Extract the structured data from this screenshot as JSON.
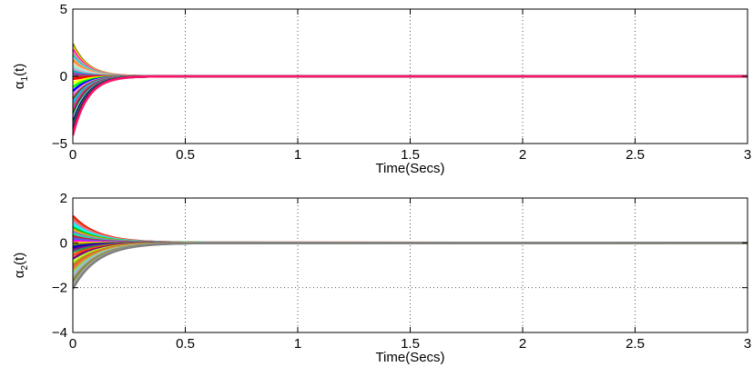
{
  "chart_data": [
    {
      "type": "line",
      "xlabel": "Time(Secs)",
      "ylabel": "α",
      "ylabel_sub": "1",
      "ylabel_suffix": "(t)",
      "xlim": [
        0,
        3
      ],
      "ylim": [
        -5,
        5
      ],
      "xticks": [
        0,
        0.5,
        1,
        1.5,
        2,
        2.5,
        3
      ],
      "xtick_labels": [
        "0",
        "0.5",
        "1",
        "1.5",
        "2",
        "2.5",
        "3"
      ],
      "yticks": [
        -5,
        0,
        5
      ],
      "ytick_labels": [
        "−5",
        "0",
        "5"
      ],
      "grid": true,
      "decay": 15,
      "overshoot": 0.03,
      "settling_time": 0.65,
      "initial_values": [
        2.4,
        2.2,
        2.0,
        1.8,
        1.6,
        1.4,
        1.2,
        1.0,
        0.8,
        0.6,
        0.4,
        0.2,
        0.0,
        -0.2,
        -0.5,
        -0.8,
        -1.1,
        -1.4,
        -1.7,
        -2.0,
        -2.3,
        -2.6,
        -2.9,
        -3.2,
        -3.5,
        -3.8,
        -4.1,
        -4.4
      ],
      "colors": [
        "#808000",
        "#ffd700",
        "#ff00ff",
        "#ffa07a",
        "#00ced1",
        "#c0c0c0",
        "#ff8c00",
        "#ffc0cb",
        "#7fffd4",
        "#dda0dd",
        "#20b2aa",
        "#9932cc",
        "#a0522d",
        "#ff0000",
        "#ffff00",
        "#00ff00",
        "#0000ff",
        "#ee82ee",
        "#8b4513",
        "#00bfff",
        "#808080",
        "#ff1493",
        "#006400",
        "#b0c4de",
        "#000080",
        "#228b22",
        "#4b0082",
        "#ff1464"
      ]
    },
    {
      "type": "line",
      "xlabel": "Time(Secs)",
      "ylabel": "α",
      "ylabel_sub": "2",
      "ylabel_suffix": "(t)",
      "xlim": [
        0,
        3
      ],
      "ylim": [
        -4,
        2
      ],
      "xticks": [
        0,
        0.5,
        1,
        1.5,
        2,
        2.5,
        3
      ],
      "xtick_labels": [
        "0",
        "0.5",
        "1",
        "1.5",
        "2",
        "2.5",
        "3"
      ],
      "yticks": [
        -4,
        -2,
        0,
        2
      ],
      "ytick_labels": [
        "−4",
        "−2",
        "0",
        "2"
      ],
      "grid": true,
      "decay": 9,
      "overshoot": 0.0,
      "settling_time": 0.6,
      "initial_values": [
        1.2,
        1.1,
        1.0,
        0.9,
        0.8,
        0.7,
        0.6,
        0.5,
        0.4,
        0.3,
        0.2,
        0.1,
        0.0,
        -0.1,
        -0.2,
        -0.3,
        -0.4,
        -0.55,
        -0.7,
        -0.85,
        -1.0,
        -1.15,
        -1.3,
        -1.45,
        -1.6,
        -1.75,
        -1.9,
        -2.05
      ],
      "colors": [
        "#ff0000",
        "#d2691e",
        "#ff69b4",
        "#40e0d0",
        "#00ffff",
        "#00c000",
        "#ffa500",
        "#9370db",
        "#00fa9a",
        "#dc143c",
        "#4169e1",
        "#ff00ff",
        "#ffd700",
        "#556b2f",
        "#0000cd",
        "#8b008b",
        "#2e8b57",
        "#ff4500",
        "#800080",
        "#adff2f",
        "#b8860b",
        "#ff6347",
        "#9acd32",
        "#87ceeb",
        "#bc8f8f",
        "#6b8e23",
        "#a9a9a9",
        "#808080"
      ]
    }
  ]
}
